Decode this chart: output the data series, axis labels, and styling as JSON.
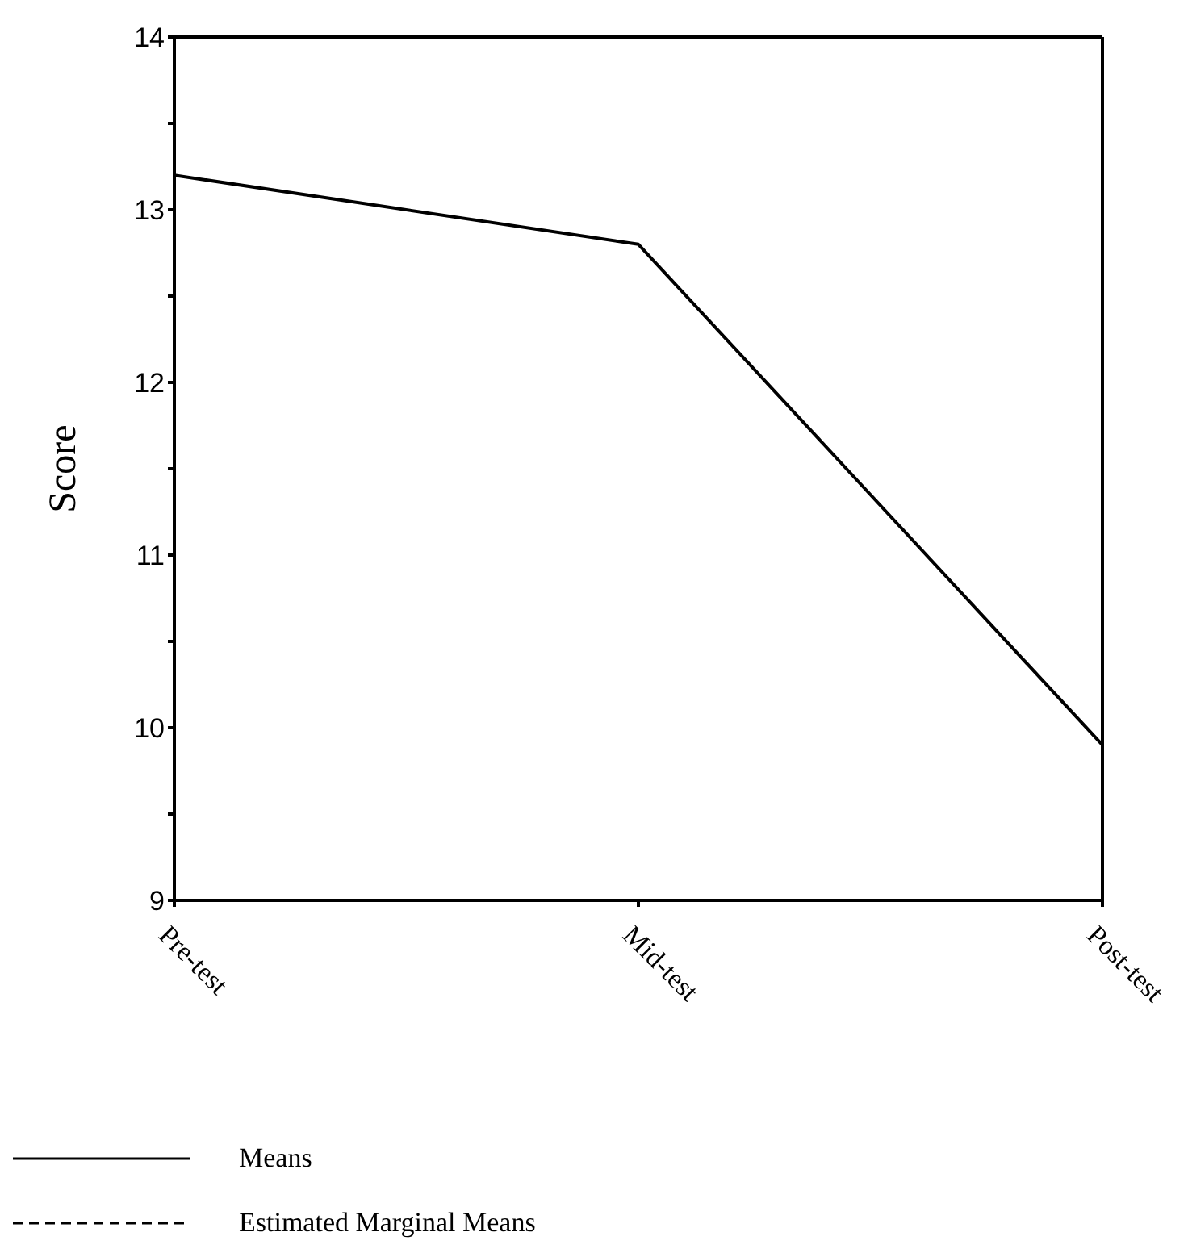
{
  "chart_data": {
    "type": "line",
    "ylabel": "Score",
    "categories": [
      "Pre-test",
      "Mid-test",
      "Post-test"
    ],
    "series": [
      {
        "name": "Means",
        "color": "#000000",
        "values": [
          13.2,
          12.8,
          9.9
        ],
        "line_style": "solid"
      },
      {
        "name": "Estimated Marginal Means",
        "color": "#000000",
        "values": [
          null,
          null,
          null
        ],
        "line_style": "dashed"
      }
    ],
    "ylim": [
      9,
      14
    ],
    "yticks": [
      9,
      {
        "value": 9.5,
        "label": null
      },
      10,
      {
        "value": 10.5,
        "label": null
      },
      11,
      {
        "value": 11.5,
        "label": null
      },
      12,
      {
        "value": 12.5,
        "label": null
      },
      13,
      {
        "value": 13.5,
        "label": null
      },
      14
    ],
    "legend": "bottom left",
    "marker": "none"
  }
}
